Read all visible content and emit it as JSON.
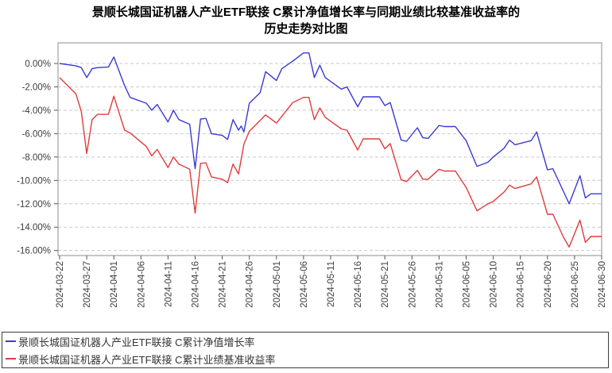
{
  "title": {
    "line1": "景顺长城国证机器人产业ETF联接 C累计净值增长率与同期业绩比较基准收益率的",
    "line2": "历史走势对比图"
  },
  "legend": {
    "items": [
      {
        "key": "nav-growth",
        "label": "景顺长城国证机器人产业ETF联接 C累计净值增长率",
        "color": "#3A3AD5"
      },
      {
        "key": "benchmark",
        "label": "景顺长城国证机器人产业ETF联接 C累计业绩基准收益率",
        "color": "#E03C3C"
      }
    ]
  },
  "chart_data": {
    "type": "line",
    "title": "景顺长城国证机器人产业ETF联接 C累计净值增长率与同期业绩比较基准收益率的历史走势对比图",
    "legend_position": "bottom",
    "grid": true,
    "grid_style": "dashed",
    "x_axis": {
      "start_date": "2024-03-22",
      "end_date": "2024-06-30",
      "tick_interval_days": 5,
      "tick_day_offsets": [
        0,
        5,
        10,
        15,
        20,
        25,
        30,
        35,
        40,
        45,
        50,
        55,
        60,
        65,
        70,
        75,
        80,
        85,
        90,
        95,
        100
      ],
      "tick_labels": [
        "2024-03-22",
        "2024-03-27",
        "2024-04-01",
        "2024-04-06",
        "2024-04-11",
        "2024-04-16",
        "2024-04-21",
        "2024-04-26",
        "2024-05-01",
        "2024-05-06",
        "2024-05-11",
        "2024-05-16",
        "2024-05-21",
        "2024-05-26",
        "2024-05-31",
        "2024-06-05",
        "2024-06-10",
        "2024-06-15",
        "2024-06-20",
        "2024-06-25",
        "2024-06-30"
      ]
    },
    "y_axis": {
      "unit": "percent",
      "ylim": [
        -16.4,
        1.8
      ],
      "tick_values": [
        0,
        -2,
        -4,
        -6,
        -8,
        -10,
        -12,
        -14,
        -16
      ],
      "tick_labels": [
        "0.00%",
        "-2.00%",
        "-4.00%",
        "-6.00%",
        "-8.00%",
        "-10.00%",
        "-12.00%",
        "-14.00%",
        "-16.00%"
      ]
    },
    "series": [
      {
        "key": "nav-growth",
        "name": "景顺长城国证机器人产业ETF联接 C累计净值增长率",
        "color": "#3A3AD5",
        "points": [
          [
            0,
            0.0
          ],
          [
            3,
            -0.2
          ],
          [
            4,
            -0.35
          ],
          [
            5,
            -1.2
          ],
          [
            6,
            -0.45
          ],
          [
            7,
            -0.35
          ],
          [
            9,
            -0.3
          ],
          [
            10,
            0.55
          ],
          [
            12,
            -1.9
          ],
          [
            13,
            -2.9
          ],
          [
            16,
            -3.4
          ],
          [
            17,
            -4.0
          ],
          [
            18,
            -3.5
          ],
          [
            20,
            -5.0
          ],
          [
            21,
            -4.0
          ],
          [
            22,
            -4.8
          ],
          [
            24,
            -5.2
          ],
          [
            25,
            -9.0
          ],
          [
            26,
            -4.75
          ],
          [
            27,
            -4.7
          ],
          [
            28,
            -6.0
          ],
          [
            30,
            -6.15
          ],
          [
            31,
            -6.5
          ],
          [
            32,
            -4.8
          ],
          [
            33,
            -5.7
          ],
          [
            33.5,
            -5.35
          ],
          [
            34,
            -5.85
          ],
          [
            35,
            -3.4
          ],
          [
            37,
            -2.5
          ],
          [
            38,
            -0.7
          ],
          [
            40,
            -1.45
          ],
          [
            41,
            -0.45
          ],
          [
            43,
            0.2
          ],
          [
            45,
            0.9
          ],
          [
            46,
            0.9
          ],
          [
            47,
            -1.2
          ],
          [
            48,
            -0.15
          ],
          [
            49,
            -1.2
          ],
          [
            52,
            -2.2
          ],
          [
            53,
            -2.0
          ],
          [
            55,
            -3.7
          ],
          [
            56,
            -2.85
          ],
          [
            59,
            -2.85
          ],
          [
            60,
            -3.6
          ],
          [
            61,
            -3.35
          ],
          [
            63,
            -6.55
          ],
          [
            64,
            -6.65
          ],
          [
            66,
            -5.5
          ],
          [
            67,
            -6.35
          ],
          [
            68,
            -6.4
          ],
          [
            70,
            -5.3
          ],
          [
            71,
            -5.4
          ],
          [
            73,
            -5.4
          ],
          [
            75,
            -6.6
          ],
          [
            77,
            -8.8
          ],
          [
            79,
            -8.45
          ],
          [
            80,
            -8.0
          ],
          [
            82,
            -7.25
          ],
          [
            83,
            -6.55
          ],
          [
            84,
            -6.95
          ],
          [
            87,
            -6.6
          ],
          [
            88,
            -5.85
          ],
          [
            90,
            -9.1
          ],
          [
            91,
            -9.0
          ],
          [
            93,
            -11.0
          ],
          [
            94,
            -12.0
          ],
          [
            96,
            -9.6
          ],
          [
            97,
            -11.5
          ],
          [
            98,
            -11.15
          ],
          [
            100,
            -11.15
          ]
        ]
      },
      {
        "key": "benchmark",
        "name": "景顺长城国证机器人产业ETF联接 C累计业绩基准收益率",
        "color": "#E03C3C",
        "points": [
          [
            0,
            -1.2
          ],
          [
            3,
            -2.6
          ],
          [
            4,
            -4.1
          ],
          [
            5,
            -7.7
          ],
          [
            6,
            -4.8
          ],
          [
            7,
            -4.35
          ],
          [
            9,
            -4.35
          ],
          [
            10,
            -2.8
          ],
          [
            12,
            -5.7
          ],
          [
            13,
            -5.95
          ],
          [
            16,
            -7.1
          ],
          [
            17,
            -7.9
          ],
          [
            18,
            -7.35
          ],
          [
            20,
            -8.9
          ],
          [
            21,
            -8.0
          ],
          [
            22,
            -8.6
          ],
          [
            24,
            -9.05
          ],
          [
            25,
            -12.8
          ],
          [
            26,
            -8.55
          ],
          [
            27,
            -8.5
          ],
          [
            28,
            -9.7
          ],
          [
            30,
            -9.9
          ],
          [
            31,
            -10.2
          ],
          [
            32,
            -8.6
          ],
          [
            33,
            -9.45
          ],
          [
            34,
            -6.9
          ],
          [
            35,
            -5.8
          ],
          [
            38,
            -4.4
          ],
          [
            40,
            -5.1
          ],
          [
            43,
            -3.35
          ],
          [
            45,
            -2.9
          ],
          [
            46,
            -2.9
          ],
          [
            47,
            -4.8
          ],
          [
            48,
            -3.8
          ],
          [
            49,
            -4.6
          ],
          [
            52,
            -5.6
          ],
          [
            53,
            -5.7
          ],
          [
            55,
            -7.4
          ],
          [
            56,
            -6.45
          ],
          [
            59,
            -6.45
          ],
          [
            60,
            -7.3
          ],
          [
            61,
            -6.85
          ],
          [
            63,
            -9.95
          ],
          [
            64,
            -10.1
          ],
          [
            66,
            -9.15
          ],
          [
            67,
            -9.9
          ],
          [
            68,
            -9.9
          ],
          [
            70,
            -9.05
          ],
          [
            71,
            -9.2
          ],
          [
            73,
            -9.2
          ],
          [
            75,
            -10.6
          ],
          [
            77,
            -12.6
          ],
          [
            79,
            -12.0
          ],
          [
            80,
            -11.8
          ],
          [
            82,
            -11.0
          ],
          [
            83,
            -10.4
          ],
          [
            84,
            -10.7
          ],
          [
            87,
            -10.3
          ],
          [
            88,
            -9.7
          ],
          [
            90,
            -12.9
          ],
          [
            91,
            -12.9
          ],
          [
            93,
            -14.9
          ],
          [
            94,
            -15.7
          ],
          [
            96,
            -13.4
          ],
          [
            97,
            -15.3
          ],
          [
            98,
            -14.8
          ],
          [
            100,
            -14.8
          ]
        ]
      }
    ]
  }
}
